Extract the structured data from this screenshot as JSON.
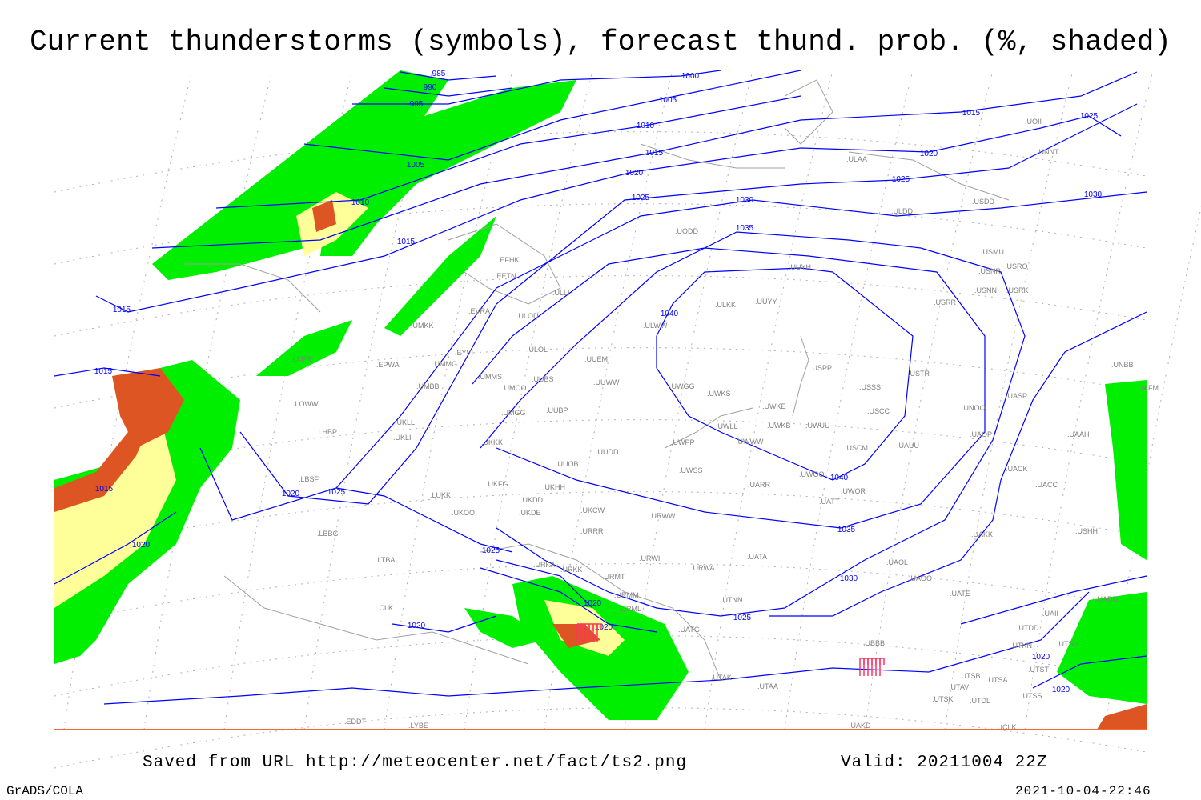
{
  "title": "Current thunderstorms (symbols), forecast thund. prob. (%, shaded)",
  "footer": {
    "source": "Saved from URL http://meteocenter.net/fact/ts2.png",
    "valid": "Valid: 20211004 22Z",
    "software": "GrADS/COLA",
    "timestamp": "2021-10-04-22:46"
  },
  "colors": {
    "isobar": "#0000ff",
    "coastline": "#a0a0a0",
    "prob_low": "#00ee00",
    "prob_mid": "#ffff99",
    "prob_high": "#dd5522",
    "prob_top": "#bb3311",
    "storm_symbol": "#ff3366"
  },
  "isobar_labels": [
    "985",
    "990",
    "995",
    "1000",
    "1005",
    "1005",
    "1010",
    "1010",
    "1015",
    "1015",
    "1015",
    "1015",
    "1015",
    "1015",
    "1020",
    "1020",
    "1020",
    "1020",
    "1020",
    "1020",
    "1020",
    "1020",
    "1020",
    "1025",
    "1025",
    "1025",
    "1025",
    "1025",
    "1025",
    "1030",
    "1030",
    "1030",
    "1035",
    "1035",
    "1040",
    "1040"
  ],
  "stations": [
    "EFHK",
    "EETN",
    "ULLI",
    "ULOD",
    "ULOL",
    "EVRA",
    "EYVI",
    "UMKK",
    "EPWA",
    "UMMG",
    "UMMS",
    "UMOO",
    "UUBS",
    "UMBB",
    "LKPR",
    "LOWW",
    "LHBP",
    "UKLL",
    "UKLI",
    "UMGG",
    "UUBP",
    "UUEM",
    "UUWW",
    "ULWW",
    "ULKK",
    "UUYY",
    "UUYH",
    "UWGG",
    "UWKS",
    "UWKE",
    "UWKB",
    "UWUU",
    "UWLL",
    "UWWW",
    "USPP",
    "USSS",
    "USCC",
    "USCM",
    "USTR",
    "UAUU",
    "UWOO",
    "UWOR",
    "UATT",
    "UARR",
    "UWSS",
    "UWPP",
    "UUDD",
    "UUOB",
    "UKKK",
    "UKHH",
    "UKDD",
    "UKDE",
    "UKFG",
    "UKOO",
    "LUKK",
    "UKCW",
    "URWW",
    "URRR",
    "URKA",
    "URKK",
    "URWI",
    "URWA",
    "URMT",
    "URMM",
    "URML",
    "UATG",
    "UATA",
    "UAOL",
    "UAOO",
    "UATE",
    "UTNN",
    "UBBB",
    "UTAK",
    "UTAA",
    "UAKD",
    "UAKK",
    "UACC",
    "UACK",
    "UAOP",
    "UNOO",
    "UASP",
    "UAAH",
    "USHH",
    "USRR",
    "USNN",
    "USRK",
    "USNR",
    "USRO",
    "USMU",
    "USDD",
    "ULDD",
    "ULAA",
    "UODD",
    "UOII",
    "UNNT",
    "UNBB",
    "UAFM",
    "UADD",
    "UAII",
    "UTDD",
    "UTSS",
    "UTSA",
    "UTSB",
    "UTAV",
    "UTSK",
    "UTDL",
    "UTST",
    "UTKN",
    "UTSH",
    "UCLK",
    "LYBE",
    "LBSF",
    "LBBG",
    "LTBA",
    "LCLK",
    "EDDT"
  ]
}
